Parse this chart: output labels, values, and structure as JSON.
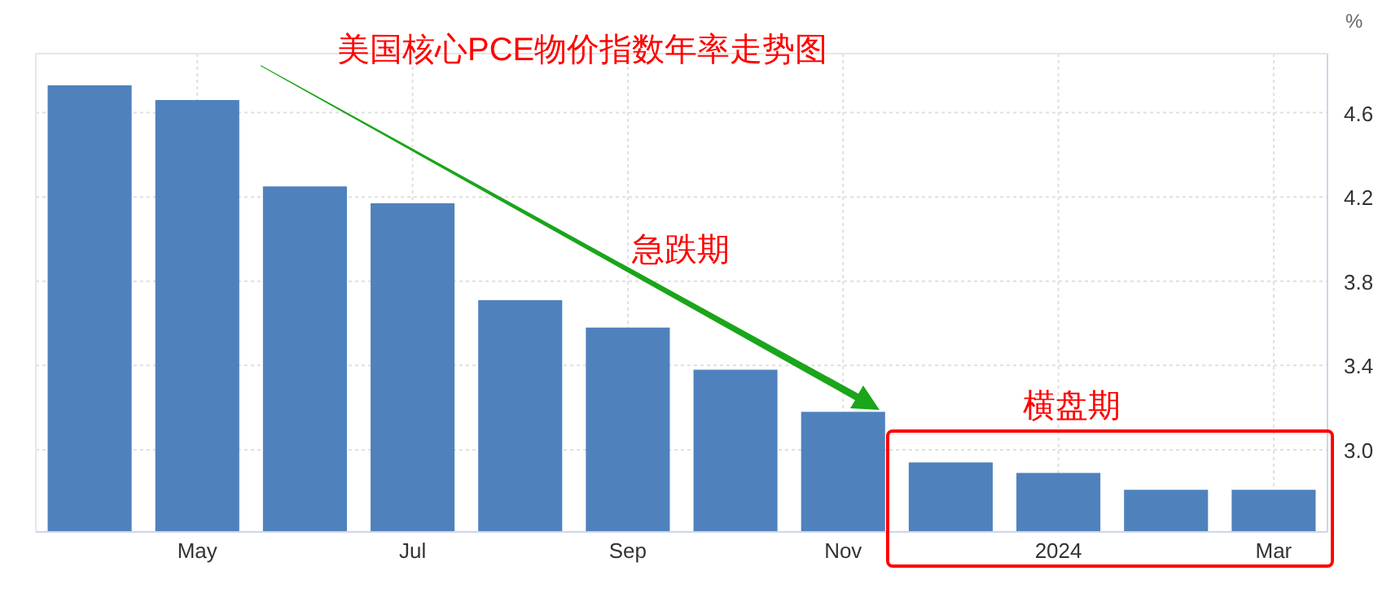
{
  "chart_data": {
    "type": "bar",
    "title": "美国核心PCE物价指数年率走势图",
    "ylabel": "%",
    "categories": [
      null,
      "May",
      null,
      "Jul",
      null,
      "Sep",
      null,
      "Nov",
      null,
      "2024",
      null,
      "Mar"
    ],
    "values": [
      4.73,
      4.66,
      4.25,
      4.17,
      3.71,
      3.58,
      3.38,
      3.18,
      2.94,
      2.89,
      2.81,
      2.81
    ],
    "color": "#4f81bd",
    "ylim": [
      2.61,
      4.88
    ],
    "yticks": [
      {
        "value": 3.0,
        "label": "3.0"
      },
      {
        "value": 3.4,
        "label": "3.4"
      },
      {
        "value": 3.8,
        "label": "3.8"
      },
      {
        "value": 4.2,
        "label": "4.2"
      },
      {
        "value": 4.6,
        "label": "4.6"
      }
    ],
    "grid": true,
    "annotations": [
      "急跌期",
      "横盘期"
    ]
  }
}
